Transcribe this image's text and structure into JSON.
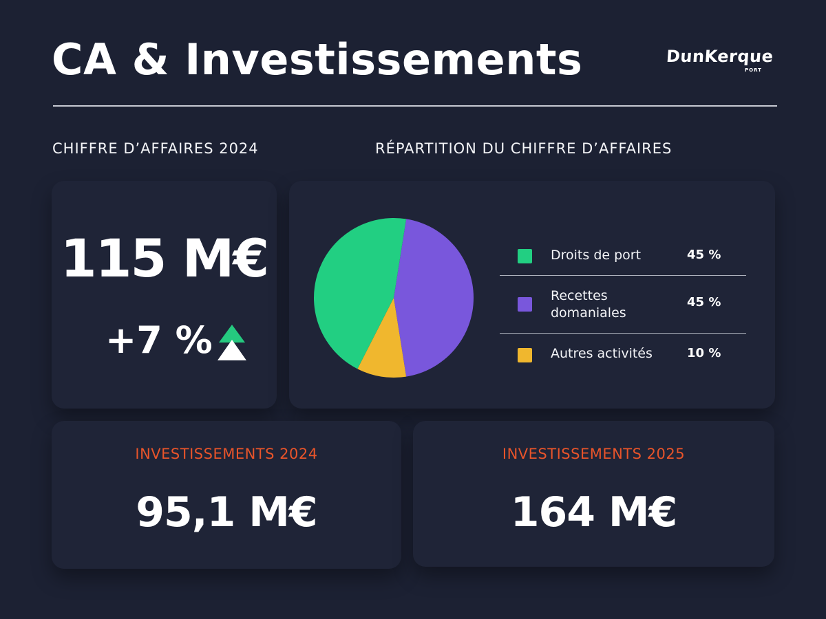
{
  "header": {
    "title": "CA & Investissements",
    "logo_text": "DunKerque",
    "logo_subtext": "PORT"
  },
  "colors": {
    "background": "#1c2133",
    "card": "#1f2437",
    "accent_orange": "#e8542a",
    "growth_green": "#25c97f"
  },
  "revenue": {
    "section_label": "CHIFFRE D’AFFAIRES 2024",
    "value": "115 M€",
    "growth": "+7 %",
    "growth_icon": "up-triangle-icon"
  },
  "breakdown": {
    "section_label": "RÉPARTITION DU CHIFFRE D’AFFAIRES"
  },
  "chart_data": {
    "type": "pie",
    "title": "RÉPARTITION DU CHIFFRE D’AFFAIRES",
    "categories": [
      "Droits de port",
      "Recettes domaniales",
      "Autres activités"
    ],
    "values": [
      45,
      45,
      10
    ],
    "value_labels": [
      "45 %",
      "45 %",
      "10 %"
    ],
    "colors": [
      "#22cf82",
      "#7957dc",
      "#f0b72e"
    ],
    "legend_position": "right"
  },
  "investments": [
    {
      "label": "INVESTISSEMENTS 2024",
      "value": "95,1 M€"
    },
    {
      "label": "INVESTISSEMENTS 2025",
      "value": "164 M€"
    }
  ]
}
